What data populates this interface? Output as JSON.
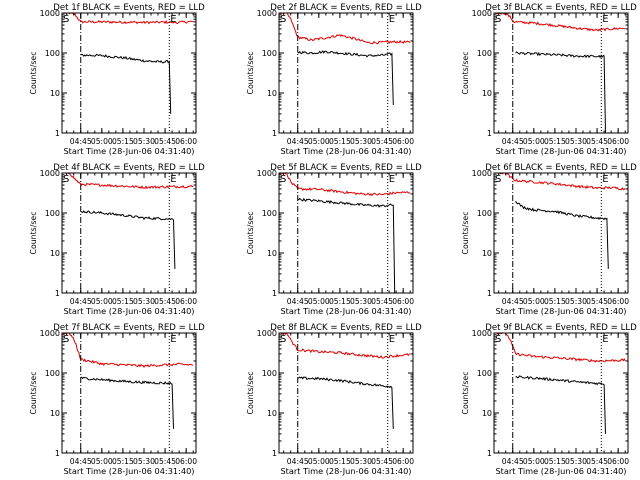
{
  "figure": {
    "background": "#ffffff",
    "axis_color": "#000000",
    "events_color": "#000000",
    "lld_color": "#e00000"
  },
  "chart_data": [
    {
      "type": "line",
      "title": "Det 1f BLACK = Events, RED = LLD",
      "xlabel": "Start Time (28-Jun-06 04:31:40)",
      "ylabel": "Counts/sec",
      "yscale": "log",
      "ylim": [
        1,
        1000
      ],
      "y_ticks": [
        "1",
        "10",
        "100",
        "1000"
      ],
      "x_ticks": [
        "04:45",
        "05:00",
        "05:15",
        "05:30",
        "05:45",
        "06:00"
      ],
      "xlim": [
        "04:31:40",
        "06:07:00"
      ],
      "markers": [
        {
          "label": "S",
          "time": "04:31:40"
        },
        {
          "label": "E",
          "time": "05:48:00"
        }
      ],
      "series": [
        {
          "role": "lld",
          "points": [
            [
              "04:31:40",
              1000
            ],
            [
              "04:37:00",
              1000
            ],
            [
              "04:41:00",
              900
            ],
            [
              "04:45:00",
              600
            ],
            [
              "05:00:00",
              600
            ],
            [
              "05:15:00",
              590
            ],
            [
              "05:30:00",
              580
            ],
            [
              "05:45:00",
              590
            ],
            [
              "05:55:00",
              580
            ],
            [
              "06:00:00",
              600
            ],
            [
              "06:05:00",
              610
            ]
          ]
        },
        {
          "role": "events",
          "points": [
            [
              "04:45:00",
              88
            ],
            [
              "04:50:00",
              88
            ],
            [
              "05:00:00",
              86
            ],
            [
              "05:15:00",
              76
            ],
            [
              "05:30:00",
              64
            ],
            [
              "05:40:00",
              60
            ],
            [
              "05:45:00",
              60
            ],
            [
              "05:48:00",
              62
            ],
            [
              "05:49:00",
              3
            ]
          ]
        }
      ]
    },
    {
      "type": "line",
      "title": "Det 2f BLACK = Events, RED = LLD",
      "xlabel": "Start Time (28-Jun-06 04:31:40)",
      "ylabel": "Counts/sec",
      "yscale": "log",
      "ylim": [
        1,
        1000
      ],
      "y_ticks": [
        "1",
        "10",
        "100",
        "1000"
      ],
      "x_ticks": [
        "04:45",
        "05:00",
        "05:15",
        "05:30",
        "05:45",
        "06:00"
      ],
      "xlim": [
        "04:31:40",
        "06:07:00"
      ],
      "markers": [
        {
          "label": "S",
          "time": "04:31:40"
        },
        {
          "label": "E",
          "time": "05:49:00"
        }
      ],
      "series": [
        {
          "role": "lld",
          "points": [
            [
              "04:31:40",
              1000
            ],
            [
              "04:37:00",
              1000
            ],
            [
              "04:40:00",
              700
            ],
            [
              "04:45:00",
              250
            ],
            [
              "04:55:00",
              210
            ],
            [
              "05:05:00",
              240
            ],
            [
              "05:15:00",
              280
            ],
            [
              "05:25:00",
              230
            ],
            [
              "05:35:00",
              180
            ],
            [
              "05:45:00",
              185
            ],
            [
              "05:55:00",
              190
            ],
            [
              "06:05:00",
              185
            ]
          ]
        },
        {
          "role": "events",
          "points": [
            [
              "04:45:00",
              105
            ],
            [
              "04:55:00",
              100
            ],
            [
              "05:05:00",
              108
            ],
            [
              "05:15:00",
              100
            ],
            [
              "05:25:00",
              92
            ],
            [
              "05:35:00",
              85
            ],
            [
              "05:45:00",
              88
            ],
            [
              "05:52:00",
              95
            ],
            [
              "05:53:00",
              5
            ]
          ]
        }
      ]
    },
    {
      "type": "line",
      "title": "Det 3f BLACK = Events, RED = LLD",
      "xlabel": "Start Time (28-Jun-06 04:31:40)",
      "ylabel": "Counts/sec",
      "yscale": "log",
      "ylim": [
        1,
        1000
      ],
      "y_ticks": [
        "1",
        "10",
        "100",
        "1000"
      ],
      "x_ticks": [
        "04:45",
        "05:00",
        "05:15",
        "05:30",
        "05:45",
        "06:00"
      ],
      "xlim": [
        "04:31:40",
        "06:07:00"
      ],
      "markers": [
        {
          "label": "S",
          "time": "04:31:40"
        },
        {
          "label": "E",
          "time": "05:48:00"
        }
      ],
      "series": [
        {
          "role": "lld",
          "points": [
            [
              "04:31:40",
              1000
            ],
            [
              "04:40:00",
              1000
            ],
            [
              "04:43:00",
              800
            ],
            [
              "04:46:00",
              600
            ],
            [
              "05:00:00",
              560
            ],
            [
              "05:15:00",
              490
            ],
            [
              "05:30:00",
              420
            ],
            [
              "05:45:00",
              370
            ],
            [
              "05:55:00",
              400
            ],
            [
              "06:05:00",
              420
            ]
          ]
        },
        {
          "role": "events",
          "points": [
            [
              "04:47:00",
              100
            ],
            [
              "05:00:00",
              95
            ],
            [
              "05:15:00",
              90
            ],
            [
              "05:30:00",
              84
            ],
            [
              "05:45:00",
              82
            ],
            [
              "05:50:00",
              82
            ],
            [
              "05:51:00",
              1
            ]
          ]
        }
      ]
    },
    {
      "type": "line",
      "title": "Det 4f BLACK = Events, RED = LLD",
      "xlabel": "Start Time (28-Jun-06 04:31:40)",
      "ylabel": "Counts/sec",
      "yscale": "log",
      "ylim": [
        1,
        1000
      ],
      "y_ticks": [
        "1",
        "10",
        "100",
        "1000"
      ],
      "x_ticks": [
        "04:45",
        "05:00",
        "05:15",
        "05:30",
        "05:45",
        "06:00"
      ],
      "xlim": [
        "04:31:40",
        "06:07:00"
      ],
      "markers": [
        {
          "label": "S",
          "time": "04:31:40"
        },
        {
          "label": "E",
          "time": "05:48:00"
        }
      ],
      "series": [
        {
          "role": "lld",
          "points": [
            [
              "04:31:40",
              1000
            ],
            [
              "04:37:00",
              1000
            ],
            [
              "04:41:00",
              700
            ],
            [
              "04:45:00",
              520
            ],
            [
              "05:00:00",
              500
            ],
            [
              "05:15:00",
              470
            ],
            [
              "05:30:00",
              440
            ],
            [
              "05:45:00",
              450
            ],
            [
              "05:55:00",
              460
            ],
            [
              "06:05:00",
              460
            ]
          ]
        },
        {
          "role": "events",
          "points": [
            [
              "04:45:00",
              110
            ],
            [
              "05:00:00",
              100
            ],
            [
              "05:15:00",
              88
            ],
            [
              "05:30:00",
              75
            ],
            [
              "05:45:00",
              72
            ],
            [
              "05:51:00",
              70
            ],
            [
              "05:52:00",
              4
            ]
          ]
        }
      ]
    },
    {
      "type": "line",
      "title": "Det 5f BLACK = Events, RED = LLD",
      "xlabel": "Start Time (28-Jun-06 04:31:40)",
      "ylabel": "Counts/sec",
      "yscale": "log",
      "ylim": [
        1,
        1000
      ],
      "y_ticks": [
        "1",
        "10",
        "100",
        "1000"
      ],
      "x_ticks": [
        "04:45",
        "05:00",
        "05:15",
        "05:30",
        "05:45",
        "06:00"
      ],
      "xlim": [
        "04:31:40",
        "06:07:00"
      ],
      "markers": [
        {
          "label": "S",
          "time": "04:31:40"
        },
        {
          "label": "E",
          "time": "05:49:00"
        }
      ],
      "series": [
        {
          "role": "lld",
          "points": [
            [
              "04:31:40",
              1000
            ],
            [
              "04:37:00",
              1000
            ],
            [
              "04:40:00",
              600
            ],
            [
              "04:45:00",
              400
            ],
            [
              "05:00:00",
              390
            ],
            [
              "05:15:00",
              340
            ],
            [
              "05:30:00",
              300
            ],
            [
              "05:45:00",
              290
            ],
            [
              "05:55:00",
              320
            ],
            [
              "06:05:00",
              330
            ]
          ]
        },
        {
          "role": "events",
          "points": [
            [
              "04:45:00",
              220
            ],
            [
              "05:00:00",
              200
            ],
            [
              "05:15:00",
              180
            ],
            [
              "05:30:00",
              160
            ],
            [
              "05:45:00",
              150
            ],
            [
              "05:53:00",
              160
            ],
            [
              "05:54:00",
              1
            ]
          ]
        }
      ]
    },
    {
      "type": "line",
      "title": "Det 6f BLACK = Events, RED = LLD",
      "xlabel": "Start Time (28-Jun-06 04:31:40)",
      "ylabel": "Counts/sec",
      "yscale": "log",
      "ylim": [
        1,
        1000
      ],
      "y_ticks": [
        "1",
        "10",
        "100",
        "1000"
      ],
      "x_ticks": [
        "04:45",
        "05:00",
        "05:15",
        "05:30",
        "05:45",
        "06:00"
      ],
      "xlim": [
        "04:31:40",
        "06:07:00"
      ],
      "markers": [
        {
          "label": "S",
          "time": "04:31:40"
        },
        {
          "label": "E",
          "time": "05:48:00"
        }
      ],
      "series": [
        {
          "role": "lld",
          "points": [
            [
              "04:31:40",
              1000
            ],
            [
              "04:40:00",
              1000
            ],
            [
              "04:43:00",
              800
            ],
            [
              "04:47:00",
              650
            ],
            [
              "05:00:00",
              600
            ],
            [
              "05:15:00",
              540
            ],
            [
              "05:30:00",
              470
            ],
            [
              "05:45:00",
              420
            ],
            [
              "05:55:00",
              430
            ],
            [
              "06:05:00",
              400
            ]
          ]
        },
        {
          "role": "events",
          "points": [
            [
              "04:47:00",
              200
            ],
            [
              "04:52:00",
              140
            ],
            [
              "05:00:00",
              120
            ],
            [
              "05:15:00",
              110
            ],
            [
              "05:30:00",
              85
            ],
            [
              "05:45:00",
              75
            ],
            [
              "05:52:00",
              72
            ],
            [
              "05:53:00",
              4
            ]
          ]
        }
      ]
    },
    {
      "type": "line",
      "title": "Det 7f BLACK = Events, RED = LLD",
      "xlabel": "Start Time (28-Jun-06 04:31:40)",
      "ylabel": "Counts/sec",
      "yscale": "log",
      "ylim": [
        1,
        1000
      ],
      "y_ticks": [
        "1",
        "10",
        "100",
        "1000"
      ],
      "x_ticks": [
        "04:45",
        "05:00",
        "05:15",
        "05:30",
        "05:45",
        "06:00"
      ],
      "xlim": [
        "04:31:40",
        "06:07:00"
      ],
      "markers": [
        {
          "label": "S",
          "time": "04:31:40"
        },
        {
          "label": "E",
          "time": "05:48:00"
        }
      ],
      "series": [
        {
          "role": "lld",
          "points": [
            [
              "04:31:40",
              1000
            ],
            [
              "04:37:00",
              1000
            ],
            [
              "04:41:00",
              600
            ],
            [
              "04:45:00",
              220
            ],
            [
              "05:00:00",
              170
            ],
            [
              "05:15:00",
              160
            ],
            [
              "05:30:00",
              150
            ],
            [
              "05:45:00",
              160
            ],
            [
              "05:55:00",
              165
            ],
            [
              "06:05:00",
              160
            ]
          ]
        },
        {
          "role": "events",
          "points": [
            [
              "04:45:00",
              75
            ],
            [
              "05:00:00",
              68
            ],
            [
              "05:15:00",
              62
            ],
            [
              "05:30:00",
              58
            ],
            [
              "05:45:00",
              56
            ],
            [
              "05:50:00",
              55
            ],
            [
              "05:51:00",
              4
            ]
          ]
        }
      ]
    },
    {
      "type": "line",
      "title": "Det 8f BLACK = Events, RED = LLD",
      "xlabel": "Start Time (28-Jun-06 04:31:40)",
      "ylabel": "Counts/sec",
      "yscale": "log",
      "ylim": [
        1,
        1000
      ],
      "y_ticks": [
        "1",
        "10",
        "100",
        "1000"
      ],
      "x_ticks": [
        "04:45",
        "05:00",
        "05:15",
        "05:30",
        "05:45",
        "06:00"
      ],
      "xlim": [
        "04:31:40",
        "06:07:00"
      ],
      "markers": [
        {
          "label": "S",
          "time": "04:31:40"
        },
        {
          "label": "E",
          "time": "05:49:00"
        }
      ],
      "series": [
        {
          "role": "lld",
          "points": [
            [
              "04:31:40",
              1000
            ],
            [
              "04:37:00",
              1000
            ],
            [
              "04:41:00",
              600
            ],
            [
              "04:45:00",
              380
            ],
            [
              "05:00:00",
              340
            ],
            [
              "05:15:00",
              320
            ],
            [
              "05:30:00",
              280
            ],
            [
              "05:45:00",
              250
            ],
            [
              "05:55:00",
              270
            ],
            [
              "06:05:00",
              290
            ]
          ]
        },
        {
          "role": "events",
          "points": [
            [
              "04:45:00",
              75
            ],
            [
              "05:00:00",
              72
            ],
            [
              "05:15:00",
              65
            ],
            [
              "05:30:00",
              55
            ],
            [
              "05:45:00",
              48
            ],
            [
              "05:52:00",
              46
            ],
            [
              "05:53:00",
              4
            ]
          ]
        }
      ]
    },
    {
      "type": "line",
      "title": "Det 9f BLACK = Events, RED = LLD",
      "xlabel": "Start Time (28-Jun-06 04:31:40)",
      "ylabel": "Counts/sec",
      "yscale": "log",
      "ylim": [
        1,
        1000
      ],
      "y_ticks": [
        "1",
        "10",
        "100",
        "1000"
      ],
      "x_ticks": [
        "04:45",
        "05:00",
        "05:15",
        "05:30",
        "05:45",
        "06:00"
      ],
      "xlim": [
        "04:31:40",
        "06:07:00"
      ],
      "markers": [
        {
          "label": "S",
          "time": "04:31:40"
        },
        {
          "label": "E",
          "time": "05:48:00"
        }
      ],
      "series": [
        {
          "role": "lld",
          "points": [
            [
              "04:31:40",
              1000
            ],
            [
              "04:40:00",
              1000
            ],
            [
              "04:43:00",
              700
            ],
            [
              "04:47:00",
              300
            ],
            [
              "05:00:00",
              260
            ],
            [
              "05:15:00",
              240
            ],
            [
              "05:30:00",
              220
            ],
            [
              "05:45:00",
              200
            ],
            [
              "05:55:00",
              205
            ],
            [
              "06:05:00",
              210
            ]
          ]
        },
        {
          "role": "events",
          "points": [
            [
              "04:47:00",
              80
            ],
            [
              "05:00:00",
              75
            ],
            [
              "05:15:00",
              68
            ],
            [
              "05:30:00",
              60
            ],
            [
              "05:45:00",
              55
            ],
            [
              "05:50:00",
              54
            ],
            [
              "05:51:00",
              3
            ]
          ]
        }
      ]
    }
  ]
}
